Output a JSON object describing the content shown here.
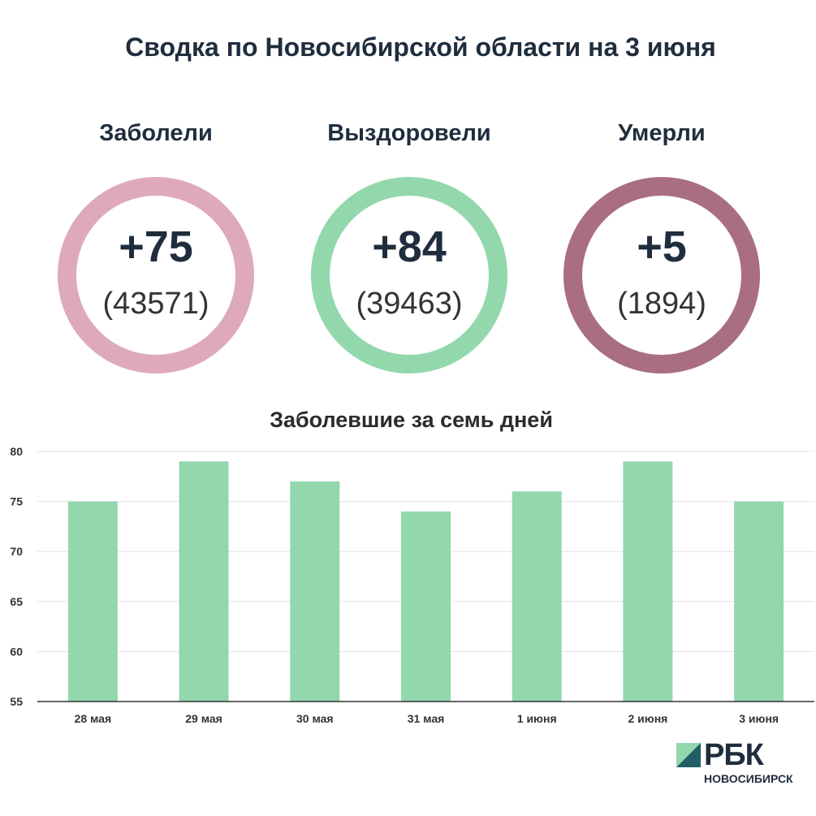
{
  "title": "Сводка по Новосибирской области на 3 июня",
  "stats": [
    {
      "label": "Заболели",
      "delta": "+75",
      "total": "(43571)",
      "color": "#dea9b9"
    },
    {
      "label": "Выздоровели",
      "delta": "+84",
      "total": "(39463)",
      "color": "#93d7ad"
    },
    {
      "label": "Умерли",
      "delta": "+5",
      "total": "(1894)",
      "color": "#a96e83"
    }
  ],
  "chart_title": "Заболевшие за семь дней",
  "chart_data": {
    "type": "bar",
    "title": "Заболевшие за семь дней",
    "categories": [
      "28 мая",
      "29 мая",
      "30 мая",
      "31 мая",
      "1 июня",
      "2 июня",
      "3 июня"
    ],
    "values": [
      75,
      79,
      77,
      74,
      76,
      79,
      75
    ],
    "ylim": [
      55,
      80
    ],
    "yticks": [
      55,
      60,
      65,
      70,
      75,
      80
    ],
    "grid": true,
    "bar_color": "#93d7ad"
  },
  "logo": {
    "brand": "РБК",
    "city": "НОВОСИБИРСК"
  }
}
